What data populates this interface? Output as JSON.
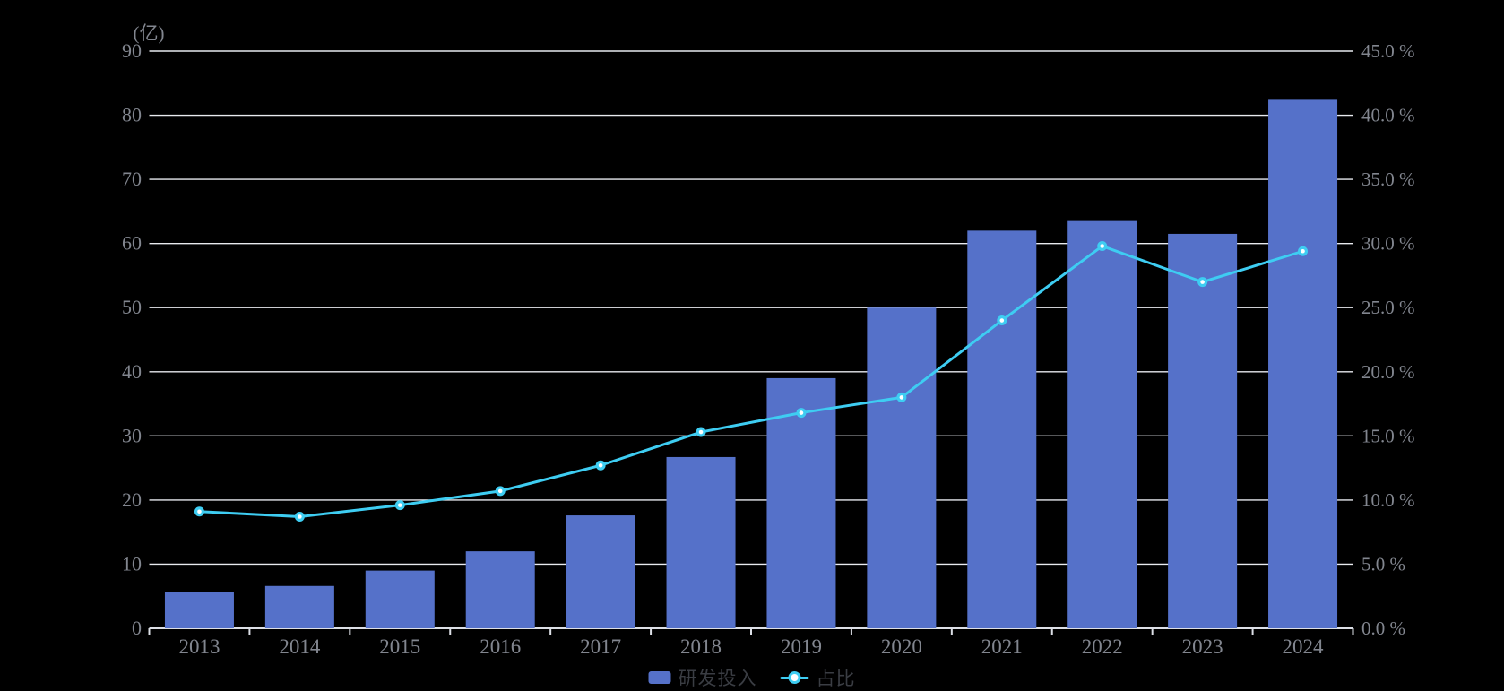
{
  "background": "#000000",
  "chart_data": {
    "type": "combo-bar-line",
    "title": "",
    "categories": [
      "2013",
      "2014",
      "2015",
      "2016",
      "2017",
      "2018",
      "2019",
      "2020",
      "2021",
      "2022",
      "2023",
      "2024"
    ],
    "series": [
      {
        "name": "研发投入",
        "type": "bar",
        "axis": "left",
        "unit": "亿",
        "color": "#5571c9",
        "values": [
          5.7,
          6.6,
          9.0,
          12.0,
          17.6,
          26.7,
          39.0,
          50.0,
          62.0,
          63.5,
          61.5,
          82.4
        ]
      },
      {
        "name": "占比",
        "type": "line",
        "axis": "right",
        "unit": "%",
        "color": "#3ecdf2",
        "marker_fill": "#ffffff",
        "values": [
          9.1,
          8.7,
          9.6,
          10.7,
          12.7,
          15.3,
          16.8,
          18.0,
          24.0,
          29.8,
          27.0,
          29.4
        ]
      }
    ],
    "left_axis": {
      "unit_label": "(亿)",
      "min": 0,
      "max": 90,
      "step": 10,
      "tick_labels": [
        "0",
        "10",
        "20",
        "30",
        "40",
        "50",
        "60",
        "70",
        "80",
        "90"
      ]
    },
    "right_axis": {
      "min": 0,
      "max": 45,
      "step": 5,
      "tick_labels": [
        "0.0 %",
        "5.0 %",
        "10.0 %",
        "15.0 %",
        "20.0 %",
        "25.0 %",
        "30.0 %",
        "35.0 %",
        "40.0 %",
        "45.0 %"
      ]
    },
    "x_axis": {
      "tick_labels": [
        "2013",
        "2014",
        "2015",
        "2016",
        "2017",
        "2018",
        "2019",
        "2020",
        "2021",
        "2022",
        "2023",
        "2024"
      ]
    },
    "legend_position": "bottom-center",
    "grid": true,
    "colors": {
      "background": "#000000",
      "gridline": "#e8eaef",
      "axis_line": "#dcdfe6",
      "axis_label": "#82868f",
      "legend_text": "#3a3d43",
      "bar": "#5571c9",
      "line": "#3ecdf2"
    }
  }
}
